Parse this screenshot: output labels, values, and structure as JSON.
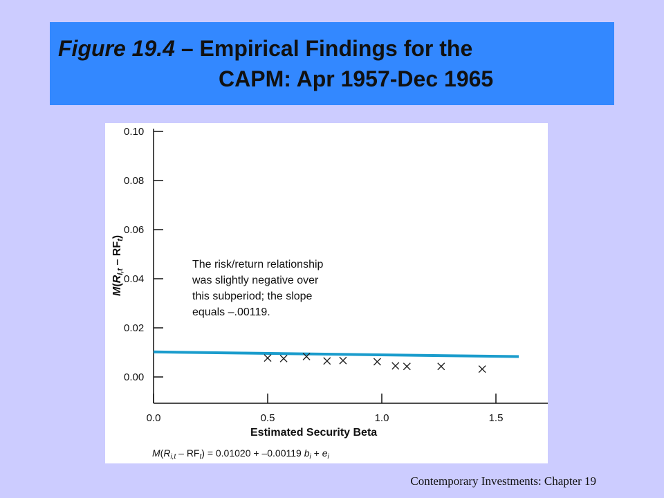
{
  "slide": {
    "title_prefix": "Figure 19.4",
    "title_line1_rest": " – Empirical Findings for the",
    "title_line2": "CAPM: Apr 1957-Dec 1965",
    "footer": "Contemporary Investments: Chapter 19"
  },
  "colors": {
    "background": "#ccccff",
    "title_bar": "#3388ff",
    "regression_line": "#1a9ccc"
  },
  "chart_data": {
    "type": "scatter",
    "xlabel": "Estimated Security Beta",
    "ylabel_parts": [
      "M",
      "(",
      "R",
      "i,t",
      " – RF",
      "t",
      ")"
    ],
    "xlim": [
      0.0,
      1.6
    ],
    "ylim": [
      -0.005,
      0.1
    ],
    "x_ticks": [
      "0.0",
      "0.5",
      "1.0",
      "1.5"
    ],
    "y_ticks": [
      "0.00",
      "0.02",
      "0.04",
      "0.06",
      "0.08",
      "0.10"
    ],
    "marker": "x",
    "points": [
      {
        "x": 0.5,
        "y": 0.0077
      },
      {
        "x": 0.57,
        "y": 0.0075
      },
      {
        "x": 0.67,
        "y": 0.0083
      },
      {
        "x": 0.76,
        "y": 0.0065
      },
      {
        "x": 0.83,
        "y": 0.0067
      },
      {
        "x": 0.98,
        "y": 0.0062
      },
      {
        "x": 1.06,
        "y": 0.0045
      },
      {
        "x": 1.11,
        "y": 0.0043
      },
      {
        "x": 1.26,
        "y": 0.0043
      },
      {
        "x": 1.44,
        "y": 0.0032
      }
    ],
    "regression": {
      "intercept": 0.0102,
      "slope": -0.00119,
      "x_start": 0.0,
      "x_end": 1.6
    },
    "annotation": [
      "The risk/return relationship",
      "was slightly negative over",
      "this subperiod; the slope",
      "equals –.00119."
    ],
    "equation": {
      "text": ") = 0.01020 + –0.00119",
      "lhs_M": "M",
      "lhs_R": "R",
      "lhs_sub": "i,t",
      "lhs_rf": " – RF",
      "lhs_rf_sub": "t",
      "b": "b",
      "b_sub": "i",
      "plus": " + ",
      "e": "e",
      "e_sub": "i"
    },
    "grid": false
  }
}
